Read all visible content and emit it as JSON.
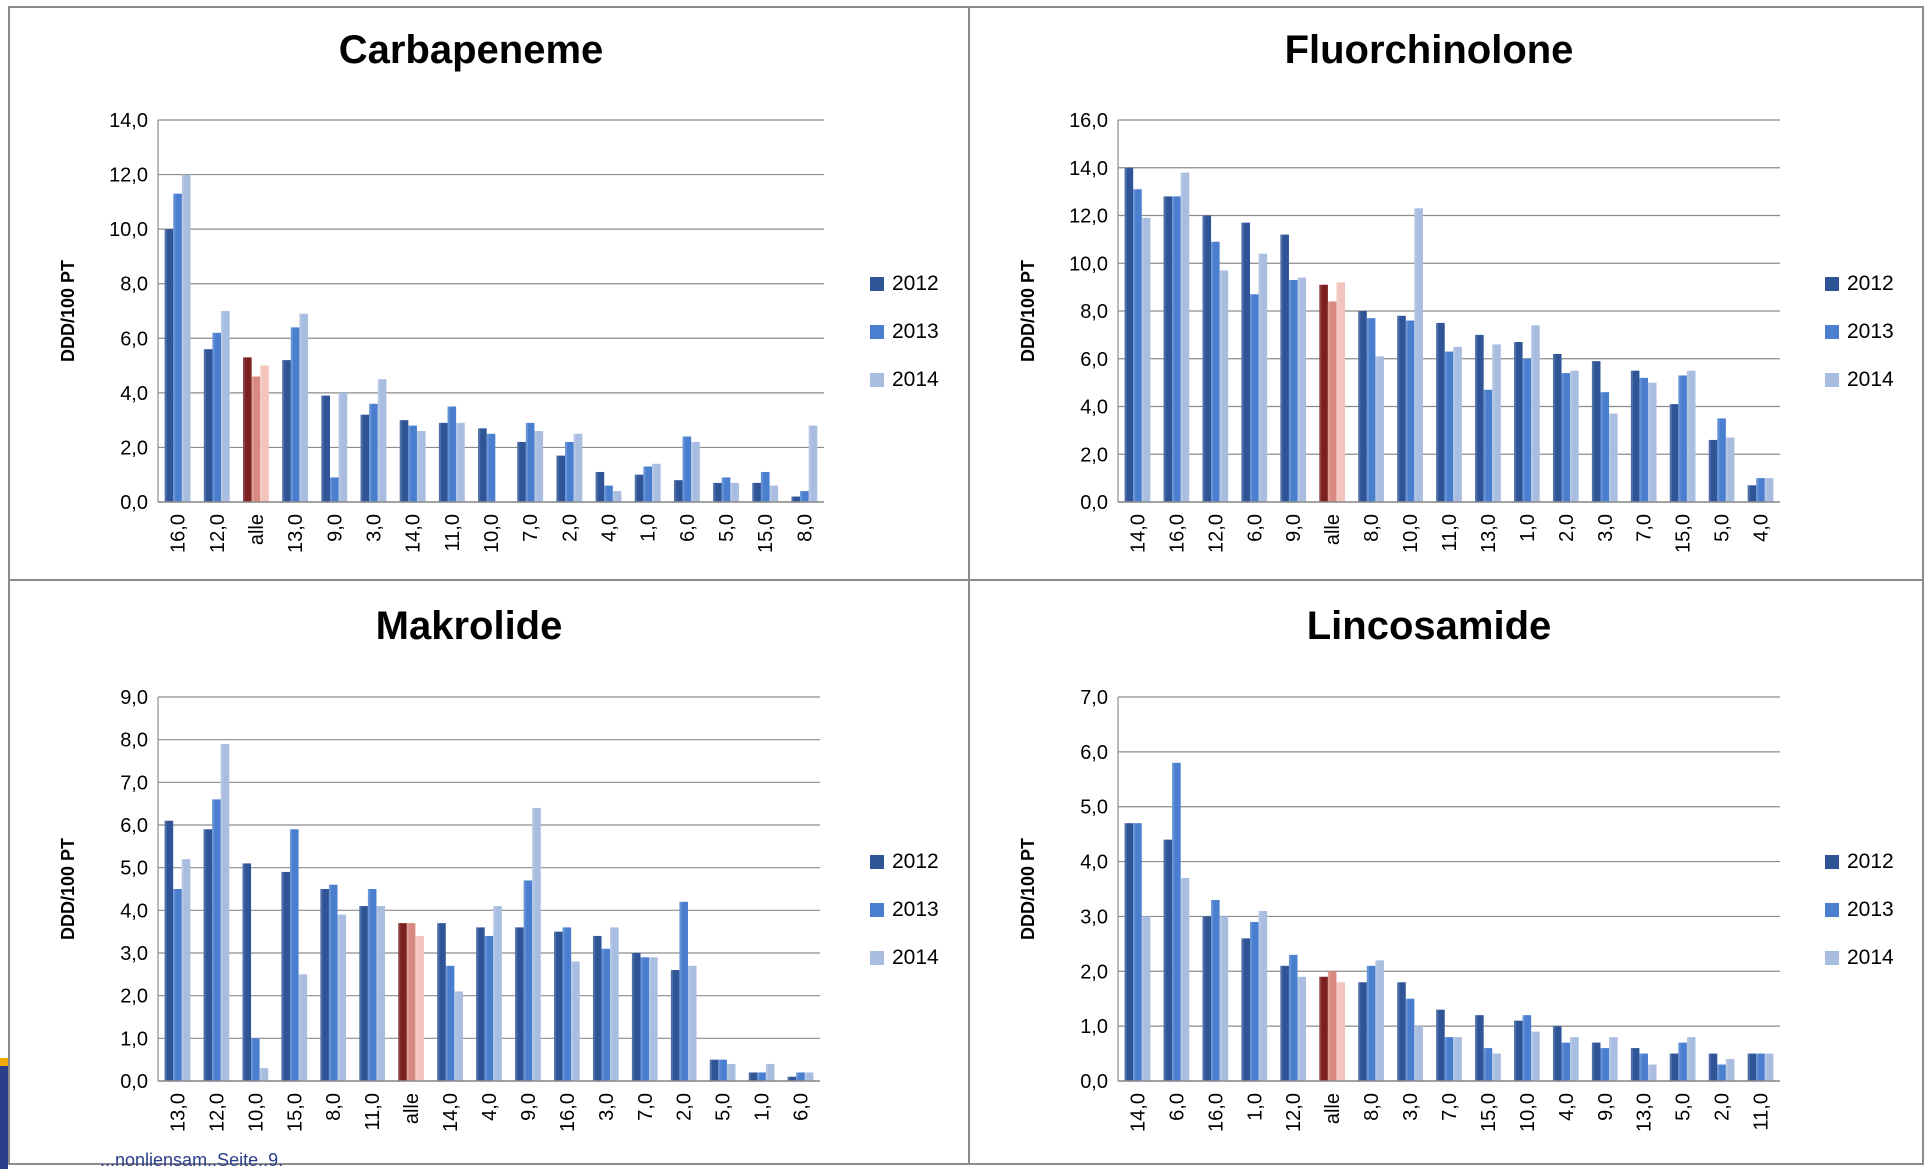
{
  "colors": {
    "2012": "#2f5597",
    "2013": "#4a7fd0",
    "2014": "#a9bde0",
    "alle_2012": "#7b1f1f",
    "alle_2013": "#d98a80",
    "alle_2014": "#f2c4bd",
    "grid": "#8c8c8c"
  },
  "footer": {
    "text": "...nonliensam..Seite..9."
  },
  "chart_data": [
    {
      "type": "bar",
      "title": "Carbapeneme",
      "ylabel": "DDD/100 PT",
      "ylim": [
        0,
        14
      ],
      "yticks": [
        "0,0",
        "2,0",
        "4,0",
        "6,0",
        "8,0",
        "10,0",
        "12,0",
        "14,0"
      ],
      "categories": [
        "16,0",
        "12,0",
        "alle",
        "13,0",
        "9,0",
        "3,0",
        "14,0",
        "11,0",
        "10,0",
        "7,0",
        "2,0",
        "4,0",
        "1,0",
        "6,0",
        "5,0",
        "15,0",
        "8,0"
      ],
      "highlight_category": "alle",
      "legend_position": "right",
      "series": [
        {
          "name": "2012",
          "values": [
            10.0,
            5.6,
            5.3,
            5.2,
            3.9,
            3.2,
            3.0,
            2.9,
            2.7,
            2.2,
            1.7,
            1.1,
            1.0,
            0.8,
            0.7,
            0.7,
            0.2
          ]
        },
        {
          "name": "2013",
          "values": [
            11.3,
            6.2,
            4.6,
            6.4,
            0.9,
            3.6,
            2.8,
            3.5,
            2.5,
            2.9,
            2.2,
            0.6,
            1.3,
            2.4,
            0.9,
            1.1,
            0.4
          ]
        },
        {
          "name": "2014",
          "values": [
            12.0,
            7.0,
            5.0,
            6.9,
            4.0,
            4.5,
            2.6,
            2.9,
            0.0,
            2.6,
            2.5,
            0.4,
            1.4,
            2.2,
            0.7,
            0.6,
            2.8
          ]
        }
      ]
    },
    {
      "type": "bar",
      "title": "Fluorchinolone",
      "ylabel": "DDD/100 PT",
      "ylim": [
        0,
        16
      ],
      "yticks": [
        "0,0",
        "2,0",
        "4,0",
        "6,0",
        "8,0",
        "10,0",
        "12,0",
        "14,0",
        "16,0"
      ],
      "categories": [
        "14,0",
        "16,0",
        "12,0",
        "6,0",
        "9,0",
        "alle",
        "8,0",
        "10,0",
        "11,0",
        "13,0",
        "1,0",
        "2,0",
        "3,0",
        "7,0",
        "15,0",
        "5,0",
        "4,0"
      ],
      "highlight_category": "alle",
      "legend_position": "right",
      "series": [
        {
          "name": "2012",
          "values": [
            14.0,
            12.8,
            12.0,
            11.7,
            11.2,
            9.1,
            8.0,
            7.8,
            7.5,
            7.0,
            6.7,
            6.2,
            5.9,
            5.5,
            4.1,
            2.6,
            0.7
          ]
        },
        {
          "name": "2013",
          "values": [
            13.1,
            12.8,
            10.9,
            8.7,
            9.3,
            8.4,
            7.7,
            7.6,
            6.3,
            4.7,
            6.0,
            5.4,
            4.6,
            5.2,
            5.3,
            3.5,
            1.0
          ]
        },
        {
          "name": "2014",
          "values": [
            11.9,
            13.8,
            9.7,
            10.4,
            9.4,
            9.2,
            6.1,
            12.3,
            6.5,
            6.6,
            7.4,
            5.5,
            3.7,
            5.0,
            5.5,
            2.7,
            1.0
          ]
        }
      ]
    },
    {
      "type": "bar",
      "title": "Makrolide",
      "ylabel": "DDD/100 PT",
      "ylim": [
        0,
        9
      ],
      "yticks": [
        "0,0",
        "1,0",
        "2,0",
        "3,0",
        "4,0",
        "5,0",
        "6,0",
        "7,0",
        "8,0",
        "9,0"
      ],
      "categories": [
        "13,0",
        "12,0",
        "10,0",
        "15,0",
        "8,0",
        "11,0",
        "alle",
        "14,0",
        "4,0",
        "9,0",
        "16,0",
        "3,0",
        "7,0",
        "2,0",
        "5,0",
        "1,0",
        "6,0"
      ],
      "highlight_category": "alle",
      "legend_position": "right",
      "series": [
        {
          "name": "2012",
          "values": [
            6.1,
            5.9,
            5.1,
            4.9,
            4.5,
            4.1,
            3.7,
            3.7,
            3.6,
            3.6,
            3.5,
            3.4,
            3.0,
            2.6,
            0.5,
            0.2,
            0.1
          ]
        },
        {
          "name": "2013",
          "values": [
            4.5,
            6.6,
            1.0,
            5.9,
            4.6,
            4.5,
            3.7,
            2.7,
            3.4,
            4.7,
            3.6,
            3.1,
            2.9,
            4.2,
            0.5,
            0.2,
            0.2
          ]
        },
        {
          "name": "2014",
          "values": [
            5.2,
            7.9,
            0.3,
            2.5,
            3.9,
            4.1,
            3.4,
            2.1,
            4.1,
            6.4,
            2.8,
            3.6,
            2.9,
            2.7,
            0.4,
            0.4,
            0.2
          ]
        }
      ]
    },
    {
      "type": "bar",
      "title": "Lincosamide",
      "ylabel": "DDD/100 PT",
      "ylim": [
        0,
        7
      ],
      "yticks": [
        "0,0",
        "1,0",
        "2,0",
        "3,0",
        "4,0",
        "5,0",
        "6,0",
        "7,0"
      ],
      "categories": [
        "14,0",
        "6,0",
        "16,0",
        "1,0",
        "12,0",
        "alle",
        "8,0",
        "3,0",
        "7,0",
        "15,0",
        "10,0",
        "4,0",
        "9,0",
        "13,0",
        "5,0",
        "2,0",
        "11,0"
      ],
      "highlight_category": "alle",
      "legend_position": "right",
      "series": [
        {
          "name": "2012",
          "values": [
            4.7,
            4.4,
            3.0,
            2.6,
            2.1,
            1.9,
            1.8,
            1.8,
            1.3,
            1.2,
            1.1,
            1.0,
            0.7,
            0.6,
            0.5,
            0.5,
            0.5
          ]
        },
        {
          "name": "2013",
          "values": [
            4.7,
            5.8,
            3.3,
            2.9,
            2.3,
            2.0,
            2.1,
            1.5,
            0.8,
            0.6,
            1.2,
            0.7,
            0.6,
            0.5,
            0.7,
            0.3,
            0.5
          ]
        },
        {
          "name": "2014",
          "values": [
            3.0,
            3.7,
            3.0,
            3.1,
            1.9,
            1.8,
            2.2,
            1.0,
            0.8,
            0.5,
            0.9,
            0.8,
            0.8,
            0.3,
            0.8,
            0.4,
            0.5
          ]
        }
      ]
    }
  ]
}
